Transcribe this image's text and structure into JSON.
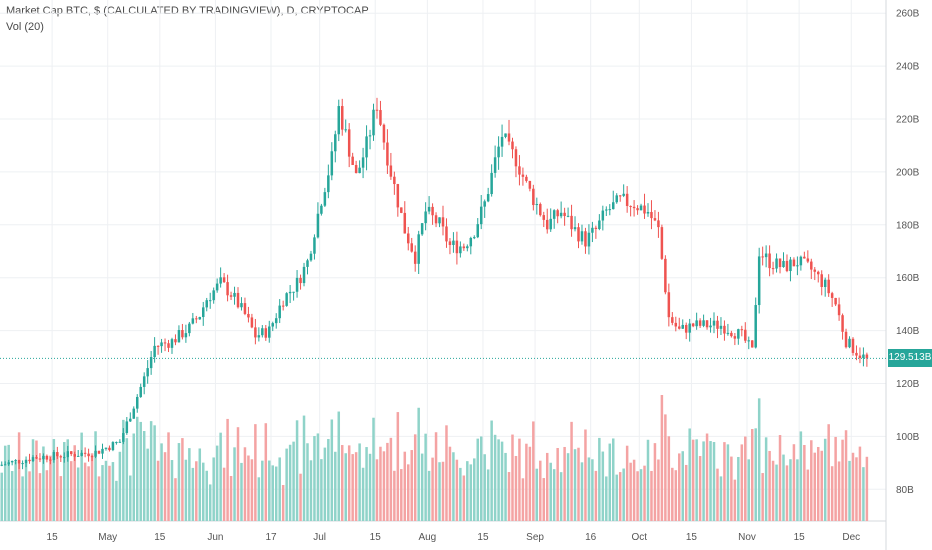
{
  "legend": {
    "title": "Market Cap BTC, $ (CALCULATED BY TRADINGVIEW), D, CRYPTOCAP",
    "volume": "Vol (20)"
  },
  "price_badge": "129.513B",
  "chart_data": {
    "type": "candlestick",
    "title": "Market Cap BTC, $ (CALCULATED BY TRADINGVIEW), D, CRYPTOCAP",
    "y_ticks": [
      "80B",
      "100B",
      "120B",
      "140B",
      "160B",
      "180B",
      "200B",
      "220B",
      "240B",
      "260B"
    ],
    "y_tick_values": [
      80,
      100,
      120,
      140,
      160,
      180,
      200,
      220,
      240,
      260
    ],
    "ylim": [
      68,
      265
    ],
    "x_ticks": [
      "15",
      "May",
      "15",
      "Jun",
      "17",
      "Jul",
      "15",
      "Aug",
      "15",
      "Sep",
      "16",
      "Oct",
      "15",
      "Nov",
      "15",
      "Dec"
    ],
    "x_tick_days": [
      15,
      31,
      46,
      62,
      78,
      92,
      108,
      123,
      139,
      154,
      170,
      184,
      199,
      215,
      230,
      245
    ],
    "xlim": [
      0,
      255
    ],
    "last_price": 129.513,
    "volume_indicator": "Vol (20)",
    "colors": {
      "up": "#26a69a",
      "down": "#ef5350",
      "up_vol": "#8fd3c9",
      "down_vol": "#f4a3a3",
      "grid": "#eef0f3",
      "axis_text": "#555555"
    },
    "price_path": [
      [
        0,
        89
      ],
      [
        10,
        92
      ],
      [
        20,
        93
      ],
      [
        28,
        94
      ],
      [
        35,
        98
      ],
      [
        42,
        122
      ],
      [
        45,
        134
      ],
      [
        50,
        136
      ],
      [
        55,
        141
      ],
      [
        58,
        146
      ],
      [
        60,
        152
      ],
      [
        64,
        158
      ],
      [
        67,
        154
      ],
      [
        71,
        146
      ],
      [
        74,
        138
      ],
      [
        78,
        140
      ],
      [
        82,
        152
      ],
      [
        86,
        158
      ],
      [
        89,
        166
      ],
      [
        93,
        190
      ],
      [
        96,
        205
      ],
      [
        98,
        224
      ],
      [
        100,
        214
      ],
      [
        103,
        198
      ],
      [
        106,
        210
      ],
      [
        109,
        226
      ],
      [
        111,
        212
      ],
      [
        113,
        200
      ],
      [
        117,
        178
      ],
      [
        120,
        168
      ],
      [
        123,
        185
      ],
      [
        127,
        180
      ],
      [
        130,
        172
      ],
      [
        134,
        172
      ],
      [
        137,
        178
      ],
      [
        140,
        188
      ],
      [
        143,
        204
      ],
      [
        145,
        214
      ],
      [
        147,
        208
      ],
      [
        149,
        205
      ],
      [
        152,
        195
      ],
      [
        154,
        190
      ],
      [
        158,
        180
      ],
      [
        162,
        185
      ],
      [
        166,
        178
      ],
      [
        169,
        174
      ],
      [
        172,
        178
      ],
      [
        175,
        185
      ],
      [
        179,
        189
      ],
      [
        183,
        188
      ],
      [
        187,
        185
      ],
      [
        190,
        178
      ],
      [
        193,
        145
      ],
      [
        196,
        140
      ],
      [
        200,
        142
      ],
      [
        204,
        142
      ],
      [
        208,
        142
      ],
      [
        211,
        140
      ],
      [
        214,
        138
      ],
      [
        217,
        132
      ],
      [
        219,
        170
      ],
      [
        222,
        166
      ],
      [
        226,
        164
      ],
      [
        230,
        166
      ],
      [
        234,
        163
      ],
      [
        238,
        157
      ],
      [
        241,
        150
      ],
      [
        244,
        136
      ],
      [
        247,
        132
      ],
      [
        249,
        130
      ]
    ],
    "volume_baseline": [
      0,
      255
    ]
  }
}
